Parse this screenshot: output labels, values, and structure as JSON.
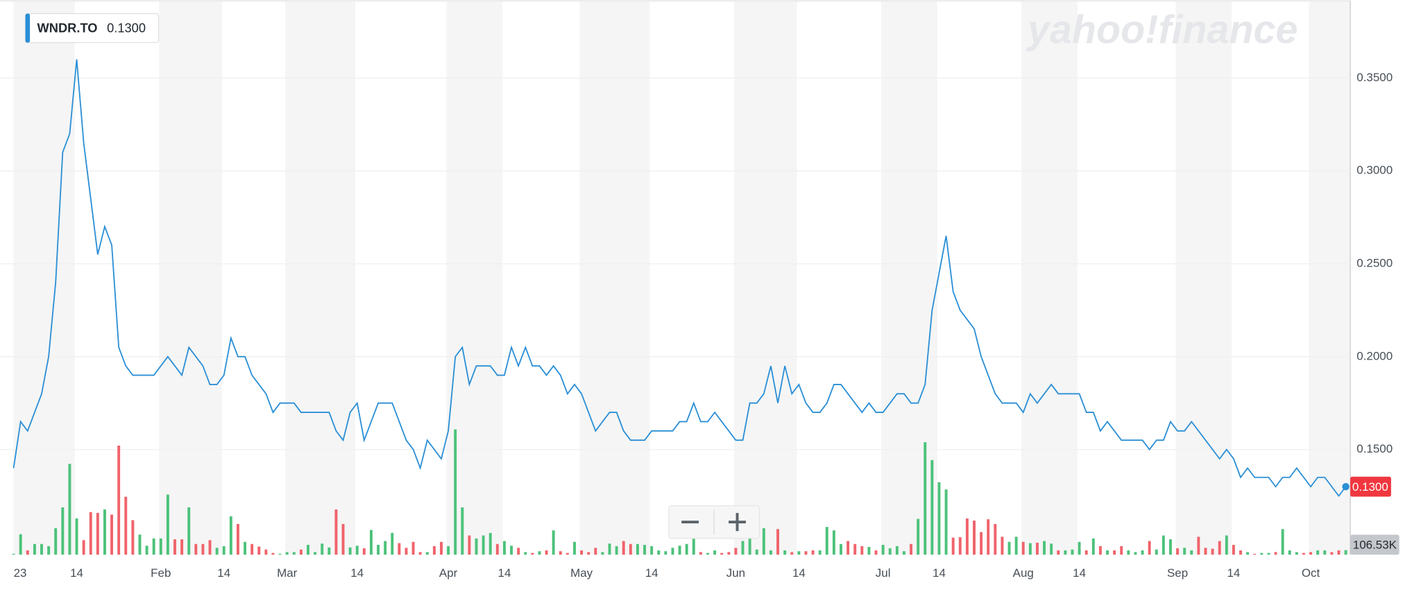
{
  "chart_data": {
    "type": "line",
    "watermark": "yahoo!finance",
    "current": {
      "value": 0.13,
      "label": "0.1300"
    },
    "grid": true,
    "ylim": [
      0.0934,
      0.3915
    ],
    "yticks": [
      {
        "value": 0.15,
        "label": "0.1500"
      },
      {
        "value": 0.2,
        "label": "0.2000"
      },
      {
        "value": 0.25,
        "label": "0.2500"
      },
      {
        "value": 0.3,
        "label": "0.3000"
      },
      {
        "value": 0.35,
        "label": "0.3500"
      }
    ],
    "y2lim": [
      0,
      13000000
    ],
    "categories": [
      "23",
      null,
      null,
      null,
      null,
      null,
      null,
      null,
      null,
      "14",
      null,
      null,
      null,
      null,
      null,
      null,
      null,
      null,
      null,
      null,
      null,
      "Feb",
      null,
      null,
      null,
      null,
      null,
      null,
      null,
      null,
      "14",
      null,
      null,
      null,
      null,
      null,
      null,
      null,
      null,
      "Mar",
      null,
      null,
      null,
      null,
      null,
      null,
      null,
      null,
      null,
      "14",
      null,
      null,
      null,
      null,
      null,
      null,
      null,
      null,
      null,
      null,
      null,
      null,
      "Apr",
      null,
      null,
      null,
      null,
      null,
      null,
      null,
      "14",
      null,
      null,
      null,
      null,
      null,
      null,
      null,
      null,
      null,
      null,
      "May",
      null,
      null,
      null,
      null,
      null,
      null,
      null,
      null,
      null,
      "14",
      null,
      null,
      null,
      null,
      null,
      null,
      null,
      null,
      null,
      null,
      null,
      "Jun",
      null,
      null,
      null,
      null,
      null,
      null,
      null,
      null,
      "14",
      null,
      null,
      null,
      null,
      null,
      null,
      null,
      null,
      null,
      null,
      null,
      "Jul",
      null,
      null,
      null,
      null,
      null,
      null,
      null,
      "14",
      null,
      null,
      null,
      null,
      null,
      null,
      null,
      null,
      null,
      null,
      null,
      "Aug",
      null,
      null,
      null,
      null,
      null,
      null,
      null,
      "14",
      null,
      null,
      null,
      null,
      null,
      null,
      null,
      null,
      null,
      null,
      null,
      null,
      null,
      "Sep",
      null,
      null,
      null,
      null,
      null,
      null,
      null,
      "14",
      null,
      null,
      null,
      null,
      null,
      null,
      null,
      null,
      null,
      null,
      "Oct",
      null,
      null,
      null,
      null,
      null
    ],
    "series": [
      {
        "name": "WNDR.TO",
        "color": "#2b8fd6",
        "values": [
          0.14,
          0.165,
          0.16,
          0.17,
          0.18,
          0.2,
          0.24,
          0.31,
          0.32,
          0.36,
          0.315,
          0.285,
          0.255,
          0.27,
          0.26,
          0.205,
          0.195,
          0.19,
          0.19,
          0.19,
          0.19,
          0.195,
          0.2,
          0.195,
          0.19,
          0.205,
          0.2,
          0.195,
          0.185,
          0.185,
          0.19,
          0.21,
          0.2,
          0.2,
          0.19,
          0.185,
          0.18,
          0.17,
          0.175,
          0.175,
          0.175,
          0.17,
          0.17,
          0.17,
          0.17,
          0.17,
          0.16,
          0.155,
          0.17,
          0.175,
          0.155,
          0.165,
          0.175,
          0.175,
          0.175,
          0.165,
          0.155,
          0.15,
          0.14,
          0.155,
          0.15,
          0.145,
          0.16,
          0.2,
          0.205,
          0.185,
          0.195,
          0.195,
          0.195,
          0.19,
          0.19,
          0.205,
          0.195,
          0.205,
          0.195,
          0.195,
          0.19,
          0.195,
          0.19,
          0.18,
          0.185,
          0.18,
          0.17,
          0.16,
          0.165,
          0.17,
          0.17,
          0.16,
          0.155,
          0.155,
          0.155,
          0.16,
          0.16,
          0.16,
          0.16,
          0.165,
          0.165,
          0.175,
          0.165,
          0.165,
          0.17,
          0.165,
          0.16,
          0.155,
          0.155,
          0.175,
          0.175,
          0.18,
          0.195,
          0.175,
          0.195,
          0.18,
          0.185,
          0.175,
          0.17,
          0.17,
          0.175,
          0.185,
          0.185,
          0.18,
          0.175,
          0.17,
          0.175,
          0.17,
          0.17,
          0.175,
          0.18,
          0.18,
          0.175,
          0.175,
          0.185,
          0.225,
          0.245,
          0.265,
          0.235,
          0.225,
          0.22,
          0.215,
          0.2,
          0.19,
          0.18,
          0.175,
          0.175,
          0.175,
          0.17,
          0.18,
          0.175,
          0.18,
          0.185,
          0.18,
          0.18,
          0.18,
          0.18,
          0.17,
          0.17,
          0.16,
          0.165,
          0.16,
          0.155,
          0.155,
          0.155,
          0.155,
          0.15,
          0.155,
          0.155,
          0.165,
          0.16,
          0.16,
          0.165,
          0.16,
          0.155,
          0.15,
          0.145,
          0.15,
          0.145,
          0.135,
          0.14,
          0.135,
          0.135,
          0.135,
          0.13,
          0.135,
          0.135,
          0.14,
          0.135,
          0.13,
          0.135,
          0.135,
          0.13,
          0.125,
          0.13
        ]
      },
      {
        "type": "bar",
        "axis": "y2",
        "up_color": "#4cc27a",
        "down_color": "#f0636b",
        "current": {
          "value": 106530,
          "label": "106.53K"
        },
        "values": [
          20000,
          480000,
          100000,
          250000,
          250000,
          200000,
          620000,
          1110000,
          2130000,
          850000,
          340000,
          1000000,
          980000,
          1060000,
          940000,
          2560000,
          1360000,
          810000,
          470000,
          210000,
          380000,
          380000,
          1410000,
          360000,
          360000,
          1110000,
          250000,
          250000,
          340000,
          160000,
          200000,
          900000,
          720000,
          300000,
          250000,
          190000,
          120000,
          40000,
          20000,
          60000,
          60000,
          120000,
          230000,
          60000,
          260000,
          170000,
          1060000,
          720000,
          170000,
          210000,
          150000,
          580000,
          230000,
          320000,
          510000,
          270000,
          160000,
          300000,
          60000,
          60000,
          200000,
          300000,
          200000,
          2940000,
          1110000,
          450000,
          380000,
          450000,
          510000,
          250000,
          320000,
          210000,
          160000,
          60000,
          40000,
          80000,
          100000,
          570000,
          80000,
          40000,
          300000,
          100000,
          60000,
          160000,
          60000,
          260000,
          200000,
          320000,
          250000,
          250000,
          230000,
          200000,
          100000,
          80000,
          160000,
          210000,
          250000,
          400000,
          60000,
          40000,
          100000,
          40000,
          60000,
          160000,
          320000,
          380000,
          120000,
          620000,
          100000,
          600000,
          100000,
          60000,
          80000,
          80000,
          100000,
          100000,
          650000,
          570000,
          250000,
          320000,
          250000,
          200000,
          180000,
          100000,
          230000,
          150000,
          200000,
          80000,
          250000,
          840000,
          2640000,
          2220000,
          1700000,
          1530000,
          400000,
          410000,
          850000,
          800000,
          530000,
          830000,
          720000,
          420000,
          300000,
          420000,
          300000,
          270000,
          280000,
          320000,
          260000,
          100000,
          100000,
          120000,
          300000,
          100000,
          380000,
          200000,
          100000,
          100000,
          200000,
          100000,
          60000,
          100000,
          320000,
          120000,
          450000,
          360000,
          150000,
          160000,
          100000,
          420000,
          160000,
          140000,
          320000,
          450000,
          230000,
          100000,
          60000,
          20000,
          40000,
          40000,
          60000,
          600000,
          100000,
          60000,
          40000,
          60000,
          100000,
          100000,
          60000,
          100000,
          106530
        ]
      }
    ]
  }
}
